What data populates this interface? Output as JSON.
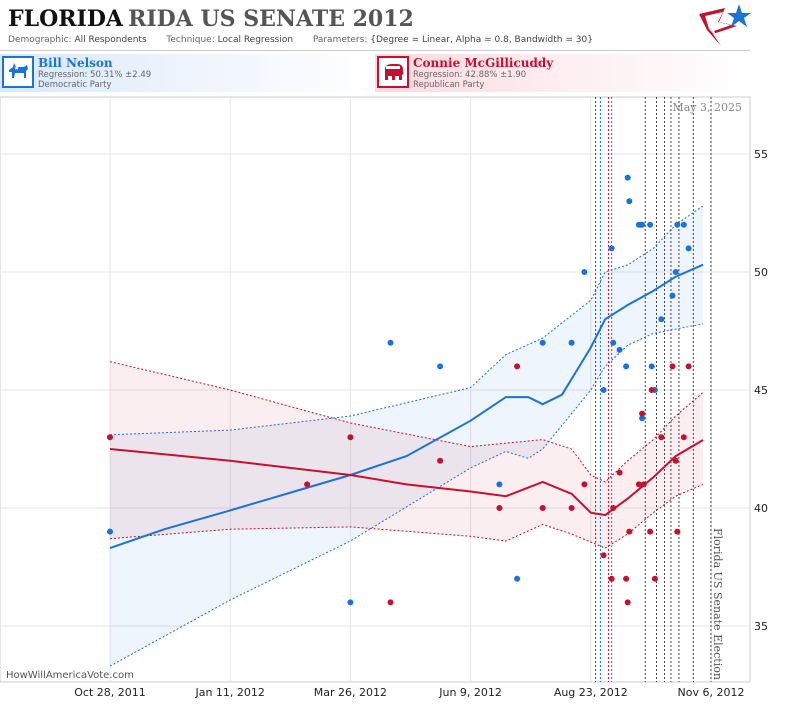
{
  "header": {
    "title_main": "FLORIDA",
    "title_sub": "RIDA US SENATE 2012",
    "demographic_label": "Demographic:",
    "demographic_value": "All Respondents",
    "technique_label": "Technique:",
    "technique_value": "Local Regression",
    "parameters_label": "Parameters:",
    "parameters_value": "{Degree = Linear, Alpha = 0.8, Bandwidth = 30}"
  },
  "candidates": {
    "dem": {
      "name": "Bill Nelson",
      "regression": "Regression: 50.31% ±2.49",
      "party": "Democratic Party",
      "color": "#1a73d9",
      "icon": "donkey-icon"
    },
    "rep": {
      "name": "Connie McGillicuddy",
      "regression": "Regression: 42.88% ±1.90",
      "party": "Republican Party",
      "color": "#c8102e",
      "icon": "elephant-icon"
    }
  },
  "date_label": "May 3, 2025",
  "election_label": "Florida US Senate Election",
  "watermark": "HowWillAmericaVote.com",
  "chart_data": {
    "type": "scatter",
    "x_ticks": [
      "Oct 28, 2011",
      "Jan 11, 2012",
      "Mar 26, 2012",
      "Jun 9, 2012",
      "Aug 23, 2012",
      "Nov 6, 2012"
    ],
    "y_ticks": [
      35,
      40,
      45,
      50,
      55
    ],
    "xlim": [
      "2011-09-25",
      "2012-11-10"
    ],
    "ylim": [
      32.5,
      57.5
    ],
    "series": [
      {
        "name": "Bill Nelson",
        "color": "#1a73d9",
        "points": [
          [
            "2011-10-28",
            39
          ],
          [
            "2012-03-26",
            36
          ],
          [
            "2012-04-20",
            47
          ],
          [
            "2012-05-21",
            46
          ],
          [
            "2012-06-27",
            41
          ],
          [
            "2012-07-08",
            37
          ],
          [
            "2012-07-24",
            47
          ],
          [
            "2012-08-11",
            47
          ],
          [
            "2012-08-19",
            50
          ],
          [
            "2012-08-31",
            45
          ],
          [
            "2012-09-05",
            51
          ],
          [
            "2012-09-06",
            47
          ],
          [
            "2012-09-10",
            46.7
          ],
          [
            "2012-09-14",
            46
          ],
          [
            "2012-09-15",
            54
          ],
          [
            "2012-09-16",
            53
          ],
          [
            "2012-09-22",
            52
          ],
          [
            "2012-09-23",
            52
          ],
          [
            "2012-09-24",
            52
          ],
          [
            "2012-09-24",
            43.8
          ],
          [
            "2012-09-29",
            52
          ],
          [
            "2012-09-30",
            46
          ],
          [
            "2012-10-02",
            45
          ],
          [
            "2012-10-06",
            48
          ],
          [
            "2012-10-13",
            49
          ],
          [
            "2012-10-15",
            50
          ],
          [
            "2012-10-16",
            52
          ],
          [
            "2012-10-20",
            52
          ],
          [
            "2012-10-23",
            51
          ]
        ],
        "trend": [
          [
            "2011-10-28",
            38.3
          ],
          [
            "2011-12-01",
            39.1
          ],
          [
            "2012-01-11",
            39.9
          ],
          [
            "2012-02-20",
            40.7
          ],
          [
            "2012-03-26",
            41.4
          ],
          [
            "2012-04-30",
            42.2
          ],
          [
            "2012-06-09",
            43.7
          ],
          [
            "2012-07-01",
            44.7
          ],
          [
            "2012-07-15",
            44.7
          ],
          [
            "2012-07-24",
            44.4
          ],
          [
            "2012-08-05",
            44.8
          ],
          [
            "2012-08-23",
            46.8
          ],
          [
            "2012-09-01",
            48.0
          ],
          [
            "2012-09-15",
            48.6
          ],
          [
            "2012-10-01",
            49.2
          ],
          [
            "2012-10-15",
            49.8
          ],
          [
            "2012-11-01",
            50.31
          ]
        ],
        "band_upper": [
          [
            "2011-10-28",
            43.1
          ],
          [
            "2012-01-11",
            43.3
          ],
          [
            "2012-03-26",
            43.9
          ],
          [
            "2012-06-09",
            45.1
          ],
          [
            "2012-07-01",
            46.5
          ],
          [
            "2012-07-24",
            47.2
          ],
          [
            "2012-08-23",
            48.8
          ],
          [
            "2012-09-01",
            50.0
          ],
          [
            "2012-09-15",
            50.3
          ],
          [
            "2012-10-01",
            51.0
          ],
          [
            "2012-10-15",
            52.0
          ],
          [
            "2012-11-01",
            52.8
          ]
        ],
        "band_lower": [
          [
            "2011-10-28",
            33.3
          ],
          [
            "2012-01-11",
            36.1
          ],
          [
            "2012-03-26",
            38.6
          ],
          [
            "2012-06-09",
            41.7
          ],
          [
            "2012-07-01",
            42.4
          ],
          [
            "2012-07-15",
            42.1
          ],
          [
            "2012-07-24",
            42.5
          ],
          [
            "2012-08-23",
            45.0
          ],
          [
            "2012-09-01",
            46.0
          ],
          [
            "2012-09-15",
            46.9
          ],
          [
            "2012-10-01",
            47.4
          ],
          [
            "2012-11-01",
            47.8
          ]
        ]
      },
      {
        "name": "Connie McGillicuddy",
        "color": "#c8102e",
        "points": [
          [
            "2011-10-28",
            43
          ],
          [
            "2012-03-26",
            43
          ],
          [
            "2012-02-28",
            41
          ],
          [
            "2012-04-20",
            36
          ],
          [
            "2012-05-21",
            42
          ],
          [
            "2012-06-27",
            40
          ],
          [
            "2012-07-08",
            46
          ],
          [
            "2012-07-24",
            40
          ],
          [
            "2012-08-11",
            40
          ],
          [
            "2012-08-19",
            41
          ],
          [
            "2012-08-31",
            38
          ],
          [
            "2012-09-05",
            37
          ],
          [
            "2012-09-06",
            40
          ],
          [
            "2012-09-10",
            41.5
          ],
          [
            "2012-09-14",
            37
          ],
          [
            "2012-09-15",
            36
          ],
          [
            "2012-09-16",
            39
          ],
          [
            "2012-09-22",
            41
          ],
          [
            "2012-09-24",
            44
          ],
          [
            "2012-09-25",
            41
          ],
          [
            "2012-09-29",
            39
          ],
          [
            "2012-09-30",
            45
          ],
          [
            "2012-10-02",
            37
          ],
          [
            "2012-10-06",
            43
          ],
          [
            "2012-10-13",
            46
          ],
          [
            "2012-10-15",
            42
          ],
          [
            "2012-10-16",
            39
          ],
          [
            "2012-10-20",
            43
          ],
          [
            "2012-10-23",
            46
          ]
        ],
        "trend": [
          [
            "2011-10-28",
            42.5
          ],
          [
            "2012-01-11",
            42.0
          ],
          [
            "2012-03-26",
            41.4
          ],
          [
            "2012-04-30",
            41.0
          ],
          [
            "2012-06-09",
            40.7
          ],
          [
            "2012-07-01",
            40.5
          ],
          [
            "2012-07-24",
            41.1
          ],
          [
            "2012-08-11",
            40.6
          ],
          [
            "2012-08-23",
            39.8
          ],
          [
            "2012-09-01",
            39.7
          ],
          [
            "2012-09-15",
            40.4
          ],
          [
            "2012-10-01",
            41.3
          ],
          [
            "2012-10-15",
            42.2
          ],
          [
            "2012-11-01",
            42.88
          ]
        ],
        "band_upper": [
          [
            "2011-10-28",
            46.2
          ],
          [
            "2012-01-11",
            45.0
          ],
          [
            "2012-03-26",
            43.6
          ],
          [
            "2012-06-09",
            42.6
          ],
          [
            "2012-07-24",
            42.9
          ],
          [
            "2012-08-11",
            42.5
          ],
          [
            "2012-08-23",
            41.4
          ],
          [
            "2012-09-01",
            41.1
          ],
          [
            "2012-09-15",
            42.0
          ],
          [
            "2012-10-01",
            42.9
          ],
          [
            "2012-10-15",
            43.9
          ],
          [
            "2012-11-01",
            44.9
          ]
        ],
        "band_lower": [
          [
            "2011-10-28",
            38.7
          ],
          [
            "2012-01-11",
            39.1
          ],
          [
            "2012-03-26",
            39.2
          ],
          [
            "2012-06-09",
            38.8
          ],
          [
            "2012-07-01",
            38.6
          ],
          [
            "2012-07-24",
            39.3
          ],
          [
            "2012-08-11",
            38.9
          ],
          [
            "2012-09-01",
            38.3
          ],
          [
            "2012-09-15",
            38.9
          ],
          [
            "2012-10-01",
            39.8
          ],
          [
            "2012-10-15",
            40.5
          ],
          [
            "2012-11-01",
            41.0
          ]
        ]
      }
    ],
    "event_lines": [
      {
        "date": "2012-08-26",
        "color": "#444444"
      },
      {
        "date": "2012-08-29",
        "color": "#1a73d9"
      },
      {
        "date": "2012-09-03",
        "color": "#c8102e"
      },
      {
        "date": "2012-09-05",
        "color": "#1a73d9"
      },
      {
        "date": "2012-09-26",
        "color": "#444444"
      },
      {
        "date": "2012-10-03",
        "color": "#444444"
      },
      {
        "date": "2012-10-08",
        "color": "#444444"
      },
      {
        "date": "2012-10-12",
        "color": "#444444"
      },
      {
        "date": "2012-10-17",
        "color": "#444444"
      },
      {
        "date": "2012-10-26",
        "color": "#444444"
      },
      {
        "date": "2012-11-06",
        "color": "#444444"
      }
    ],
    "grid": true
  }
}
